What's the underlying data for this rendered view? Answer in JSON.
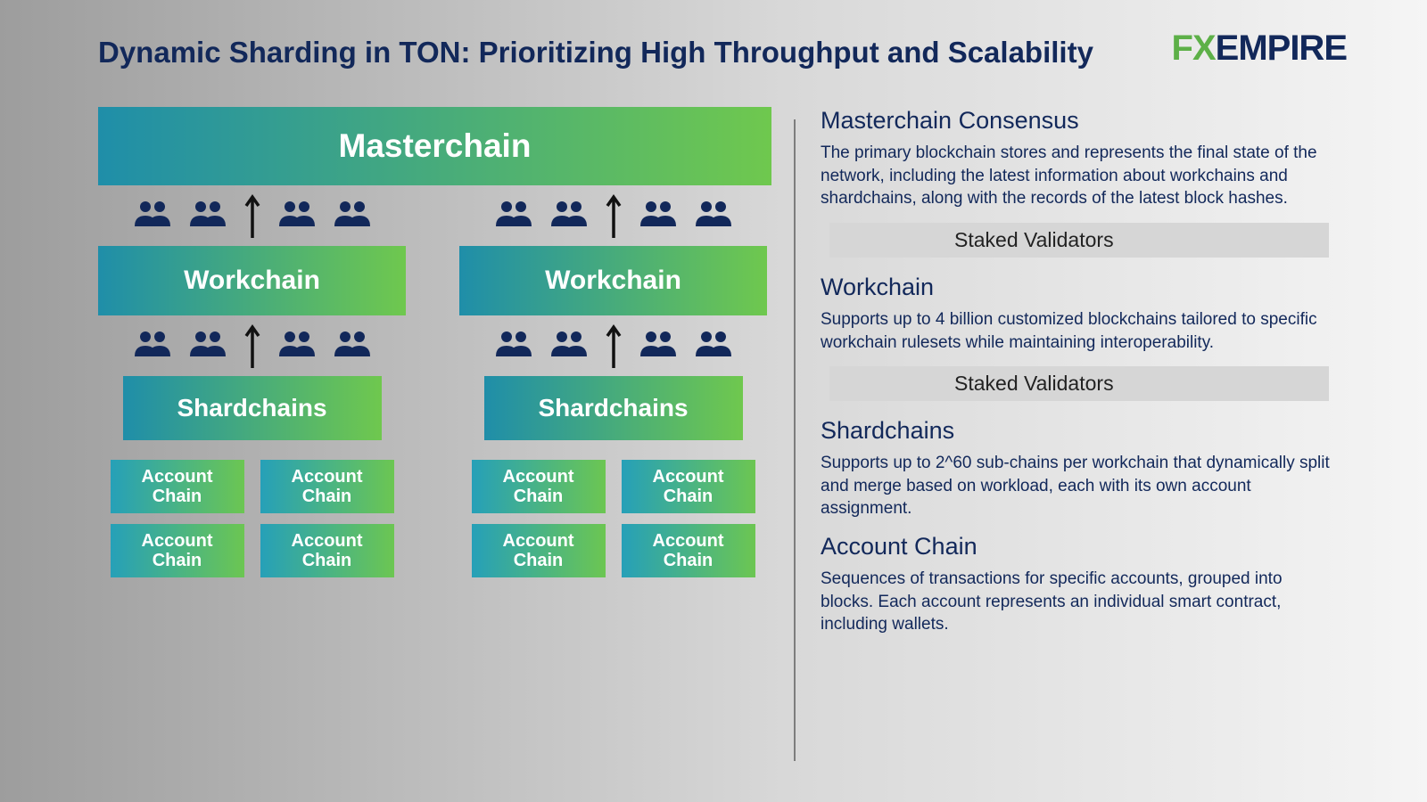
{
  "title": "Dynamic Sharding in TON: Prioritizing High Throughput and Scalability",
  "logo": {
    "part1": "FX",
    "part2": "EMPIRE"
  },
  "colors": {
    "title_text": "#12285a",
    "body_text": "#12285a",
    "icon_fill": "#12285a",
    "gradient_start": "#1f8ea9",
    "gradient_end": "#6fc84e",
    "account_gradient_start": "#26a0b8",
    "account_gradient_end": "#6cc652",
    "box_text": "#ffffff",
    "validator_band_bg": "#d6d6d6",
    "divider": "#7d7d7d",
    "bg_gradient_left": "#9d9d9d",
    "bg_gradient_right": "#f5f5f5",
    "logo_fx": "#5db048",
    "logo_empire": "#12285a"
  },
  "diagram": {
    "type": "tree",
    "masterchain_label": "Masterchain",
    "workchain_label": "Workchain",
    "shardchain_label": "Shardchains",
    "account_label": "Account\nChain",
    "columns": 2,
    "accounts_per_shard": 4,
    "validators_icons_per_row": 4,
    "arrow_direction": "up"
  },
  "sections": [
    {
      "title": "Masterchain Consensus",
      "body": "The primary blockchain stores and represents the final state of the network, including the latest information about workchains and shardchains, along with the records of the latest block hashes.",
      "validator_band": "Staked Validators"
    },
    {
      "title": "Workchain",
      "body": "Supports up to 4 billion customized blockchains tailored to specific workchain rulesets while maintaining interoperability.",
      "validator_band": "Staked Validators"
    },
    {
      "title": "Shardchains",
      "body": "Supports up to 2^60 sub-chains per workchain that dynamically split and merge based on workload, each with its own account assignment.",
      "validator_band": null
    },
    {
      "title": "Account Chain",
      "body": "Sequences of transactions for specific accounts, grouped into blocks. Each account represents an individual smart contract, including wallets.",
      "validator_band": null
    }
  ],
  "typography": {
    "title_fontsize": 33,
    "section_title_fontsize": 27,
    "section_body_fontsize": 19,
    "masterchain_fontsize": 37,
    "workchain_fontsize": 30,
    "shardchain_fontsize": 28,
    "account_fontsize": 20,
    "validator_band_fontsize": 23,
    "logo_fontsize": 40
  }
}
